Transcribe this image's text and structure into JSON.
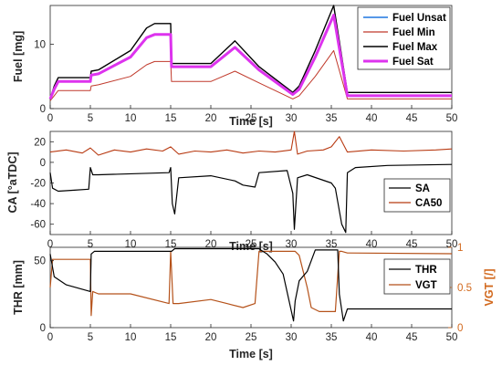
{
  "colors": {
    "fuel_unsat": "#1f77e0",
    "fuel_min": "#c0392b",
    "fuel_max": "#000000",
    "fuel_sat": "#dd33ee",
    "sa": "#000000",
    "ca50": "#b83a12",
    "thr": "#000000",
    "vgt": "#b5521a",
    "vgt_axis": "#d2691e"
  },
  "chart_data": [
    {
      "type": "line",
      "xlabel": "Time [s]",
      "ylabel": "Fuel [mg]",
      "xlim": [
        0,
        50
      ],
      "ylim": [
        0,
        16
      ],
      "xticks": [
        "0",
        "5",
        "10",
        "15",
        "20",
        "25",
        "30",
        "35",
        "40",
        "45",
        "50"
      ],
      "yticks": [
        "0",
        "10"
      ],
      "legend_position": "top-right",
      "series": [
        {
          "name": "Fuel Unsat",
          "x": [
            0,
            0.5,
            1,
            5,
            5.1,
            6,
            10,
            12,
            13,
            15,
            15.1,
            16,
            20,
            23,
            26,
            30.2,
            31,
            33,
            35.3,
            37,
            50
          ],
          "y": [
            1.5,
            3,
            4.2,
            4.2,
            5.2,
            5.4,
            8,
            11,
            11.5,
            11.5,
            6.5,
            6.5,
            6.5,
            9.5,
            6,
            2.2,
            3,
            8,
            14.5,
            2,
            2
          ]
        },
        {
          "name": "Fuel Min",
          "x": [
            0,
            0.5,
            1,
            5,
            5.1,
            6,
            10,
            12,
            13,
            15,
            15.1,
            16,
            20,
            23,
            26,
            30.2,
            31,
            33,
            35.3,
            37,
            50
          ],
          "y": [
            1.2,
            2,
            2.8,
            2.8,
            3.5,
            3.7,
            5,
            6.8,
            7.3,
            7.3,
            4.2,
            4.2,
            4.2,
            5.8,
            4,
            1.5,
            2,
            5,
            9,
            1.5,
            1.5
          ]
        },
        {
          "name": "Fuel Max",
          "x": [
            0,
            0.5,
            1,
            5,
            5.1,
            6,
            10,
            12,
            13,
            15,
            15.1,
            16,
            20,
            23,
            26,
            30.2,
            31,
            33,
            35.3,
            37,
            50
          ],
          "y": [
            1.5,
            3.5,
            4.8,
            4.8,
            5.8,
            6,
            9,
            12.5,
            13.2,
            13.2,
            7,
            7,
            7,
            10.5,
            6.5,
            2.5,
            3.5,
            9,
            16,
            2.5,
            2.5
          ]
        },
        {
          "name": "Fuel Sat",
          "x": [
            0,
            0.5,
            1,
            5,
            5.1,
            6,
            10,
            12,
            13,
            15,
            15.1,
            16,
            20,
            23,
            26,
            30.2,
            31,
            33,
            35.3,
            37,
            50
          ],
          "y": [
            1.5,
            3,
            4.2,
            4.2,
            5.2,
            5.4,
            8,
            11,
            11.5,
            11.5,
            6.5,
            6.5,
            6.5,
            9.5,
            6,
            2.2,
            3,
            8,
            14.5,
            2,
            2
          ]
        }
      ]
    },
    {
      "type": "line",
      "xlabel": "Time [s]",
      "ylabel": "CA [°aTDC]",
      "xlim": [
        0,
        50
      ],
      "ylim": [
        -70,
        30
      ],
      "xticks": [
        "0",
        "5",
        "10",
        "15",
        "20",
        "25",
        "30",
        "35",
        "40",
        "45",
        "50"
      ],
      "yticks": [
        "20",
        "0",
        "-20",
        "-40",
        "-60"
      ],
      "legend_position": "bottom-right",
      "series": [
        {
          "name": "SA",
          "x": [
            0,
            0.3,
            1,
            3,
            4.8,
            5,
            5.3,
            6,
            14.8,
            15,
            15.2,
            15.5,
            16,
            20,
            23,
            24,
            25.5,
            26,
            29.5,
            30.2,
            30.4,
            30.8,
            32,
            35,
            35.5,
            36.3,
            36.8,
            37,
            38,
            42,
            50
          ],
          "y": [
            -10,
            -25,
            -28,
            -27,
            -26,
            -5,
            -12,
            -12,
            -10,
            -5,
            -40,
            -50,
            -15,
            -13,
            -18,
            -22,
            -24,
            -10,
            -8,
            -30,
            -65,
            -15,
            -12,
            -20,
            -25,
            -60,
            -68,
            -10,
            -5,
            -3,
            -2
          ]
        },
        {
          "name": "CA50",
          "x": [
            0,
            2,
            4,
            5,
            6,
            8,
            10,
            12,
            14,
            15,
            16,
            18,
            20,
            22,
            24,
            26,
            28,
            30,
            30.4,
            30.8,
            32,
            34,
            35,
            36,
            37,
            40,
            44,
            48,
            50
          ],
          "y": [
            10,
            12,
            9,
            14,
            7,
            12,
            10,
            13,
            11,
            15,
            8,
            11,
            10,
            12,
            9,
            11,
            10,
            12,
            30,
            8,
            11,
            12,
            15,
            25,
            10,
            12,
            11,
            12,
            13
          ]
        }
      ]
    },
    {
      "type": "line",
      "xlabel": "Time [s]",
      "ylabel": "THR [mm]",
      "y2label": "VGT [/]",
      "xlim": [
        0,
        50
      ],
      "ylim": [
        0,
        60
      ],
      "y2lim": [
        0,
        1
      ],
      "xticks": [
        "0",
        "5",
        "10",
        "15",
        "20",
        "25",
        "30",
        "35",
        "40",
        "45",
        "50"
      ],
      "yticks": [
        "0",
        "50"
      ],
      "y2ticks": [
        "0",
        "0.5",
        "1"
      ],
      "legend_position": "top-right",
      "series": [
        {
          "name": "THR",
          "axis": "left",
          "x": [
            0,
            0.5,
            2,
            5,
            5.1,
            5.5,
            15,
            15.1,
            15.5,
            26,
            26.2,
            27,
            28,
            29,
            30.3,
            30.5,
            31,
            32,
            33,
            35.8,
            36,
            36.5,
            37,
            50
          ],
          "y": [
            55,
            38,
            32,
            27,
            55,
            57,
            57,
            57,
            59,
            59,
            58,
            55,
            49,
            40,
            5,
            20,
            35,
            42,
            58,
            58,
            25,
            5,
            14,
            14
          ]
        },
        {
          "name": "VGT",
          "axis": "right",
          "x": [
            0,
            0.3,
            5,
            5.1,
            5.3,
            6,
            10,
            14.8,
            15,
            15.3,
            16,
            20,
            22,
            24,
            25.5,
            26,
            26.3,
            30.5,
            31,
            32,
            32.5,
            33.5,
            35.5,
            36,
            36.3,
            37,
            50
          ],
          "y": [
            0.5,
            0.85,
            0.85,
            0.15,
            0.45,
            0.42,
            0.42,
            0.3,
            0.95,
            0.3,
            0.3,
            0.35,
            0.3,
            0.25,
            0.3,
            0.95,
            0.95,
            0.95,
            0.9,
            0.5,
            0.25,
            0.2,
            0.2,
            0.95,
            0.95,
            0.93,
            0.92
          ]
        }
      ]
    }
  ]
}
